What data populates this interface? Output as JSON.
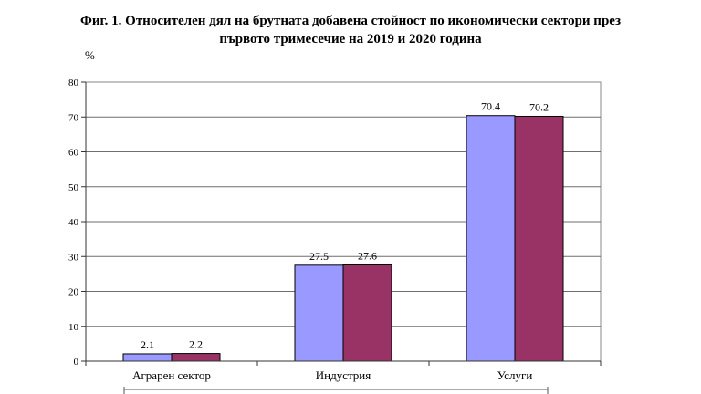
{
  "chart_data": {
    "type": "bar",
    "title_line1": "Фиг. 1. Относителен дял на брутната добавена стойност по икономически сектори през",
    "title_line2": "първото тримесечие на 2019 и 2020 година",
    "ylabel": "%",
    "categories": [
      "Аграрен сектор",
      "Индустрия",
      "Услуги"
    ],
    "series": [
      {
        "values": [
          2.1,
          27.5,
          70.4
        ],
        "color": "#9999ff"
      },
      {
        "values": [
          2.2,
          27.6,
          70.2
        ],
        "color": "#993366"
      }
    ],
    "ylim": [
      0,
      80
    ],
    "yticks": [
      0,
      10,
      20,
      30,
      40,
      50,
      60,
      70,
      80
    ],
    "grid": true,
    "legend": "none"
  }
}
